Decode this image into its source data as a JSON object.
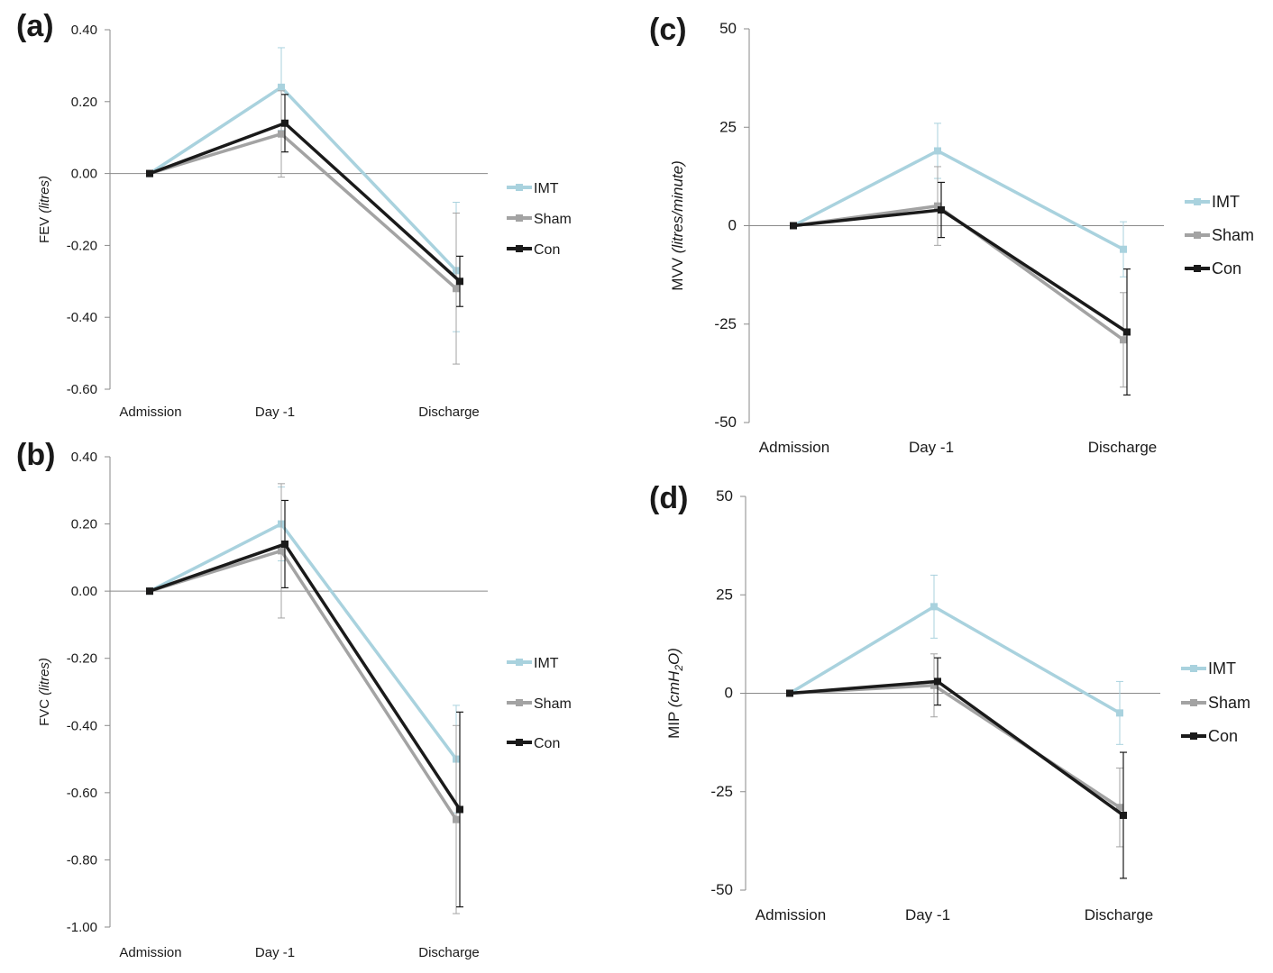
{
  "colors": {
    "IMT": "#a9d2de",
    "Sham": "#a3a3a3",
    "Con": "#1a1a1a",
    "axis": "#8a8a8a"
  },
  "chart_data": [
    {
      "panel": "(a)",
      "type": "line",
      "ylabel_main": "FEV",
      "ylabel_unit": "(litres)",
      "categories": [
        "Admission",
        "Day -1",
        "Discharge"
      ],
      "ylim": [
        -0.6,
        0.4
      ],
      "yticks": [
        0.4,
        0.2,
        0.0,
        -0.2,
        -0.4,
        -0.6
      ],
      "ytick_labels": [
        "0.40",
        "0.20",
        "0.00",
        "-0.20",
        "-0.40",
        "-0.60"
      ],
      "legend": "right",
      "grid": false,
      "series": [
        {
          "name": "IMT",
          "values": [
            0,
            0.24,
            -0.27
          ],
          "err_low": [
            0,
            0.12,
            -0.44
          ],
          "err_high": [
            0,
            0.35,
            -0.08
          ]
        },
        {
          "name": "Sham",
          "values": [
            0,
            0.11,
            -0.32
          ],
          "err_low": [
            0,
            -0.01,
            -0.53
          ],
          "err_high": [
            0,
            0.23,
            -0.11
          ]
        },
        {
          "name": "Con",
          "values": [
            0,
            0.14,
            -0.3
          ],
          "err_low": [
            0,
            0.06,
            -0.37
          ],
          "err_high": [
            0,
            0.22,
            -0.23
          ]
        }
      ]
    },
    {
      "panel": "(b)",
      "type": "line",
      "ylabel_main": "FVC",
      "ylabel_unit": "(litres)",
      "categories": [
        "Admission",
        "Day -1",
        "Discharge"
      ],
      "ylim": [
        -1.0,
        0.4
      ],
      "yticks": [
        0.4,
        0.2,
        0.0,
        -0.2,
        -0.4,
        -0.6,
        -0.8,
        -1.0
      ],
      "ytick_labels": [
        "0.40",
        "0.20",
        "0.00",
        "-0.20",
        "-0.40",
        "-0.60",
        "-0.80",
        "-1.00"
      ],
      "legend": "right",
      "grid": false,
      "series": [
        {
          "name": "IMT",
          "values": [
            0,
            0.2,
            -0.5
          ],
          "err_low": [
            0,
            0.09,
            -0.66
          ],
          "err_high": [
            0,
            0.31,
            -0.34
          ]
        },
        {
          "name": "Sham",
          "values": [
            0,
            0.12,
            -0.68
          ],
          "err_low": [
            0,
            -0.08,
            -0.96
          ],
          "err_high": [
            0,
            0.32,
            -0.4
          ]
        },
        {
          "name": "Con",
          "values": [
            0,
            0.14,
            -0.65
          ],
          "err_low": [
            0,
            0.01,
            -0.94
          ],
          "err_high": [
            0,
            0.27,
            -0.36
          ]
        }
      ]
    },
    {
      "panel": "(c)",
      "type": "line",
      "ylabel_main": "MVV",
      "ylabel_unit": "(litres/minute)",
      "categories": [
        "Admission",
        "Day -1",
        "Discharge"
      ],
      "ylim": [
        -50,
        50
      ],
      "yticks": [
        50,
        25,
        0,
        -25,
        -50
      ],
      "ytick_labels": [
        "50",
        "25",
        "0",
        "-25",
        "-50"
      ],
      "legend": "right",
      "grid": false,
      "series": [
        {
          "name": "IMT",
          "values": [
            0,
            19,
            -6
          ],
          "err_low": [
            0,
            12,
            -13
          ],
          "err_high": [
            0,
            26,
            1
          ]
        },
        {
          "name": "Sham",
          "values": [
            0,
            5,
            -29
          ],
          "err_low": [
            0,
            -5,
            -41
          ],
          "err_high": [
            0,
            15,
            -17
          ]
        },
        {
          "name": "Con",
          "values": [
            0,
            4,
            -27
          ],
          "err_low": [
            0,
            -3,
            -43
          ],
          "err_high": [
            0,
            11,
            -11
          ]
        }
      ]
    },
    {
      "panel": "(d)",
      "type": "line",
      "ylabel_main": "MIP",
      "ylabel_unit_prefix": "(cmH",
      "ylabel_unit_sub": "2",
      "ylabel_unit_suffix": "O)",
      "categories": [
        "Admission",
        "Day -1",
        "Discharge"
      ],
      "ylim": [
        -50,
        50
      ],
      "yticks": [
        50,
        25,
        0,
        -25,
        -50
      ],
      "ytick_labels": [
        "50",
        "25",
        "0",
        "-25",
        "-50"
      ],
      "legend": "right",
      "grid": false,
      "series": [
        {
          "name": "IMT",
          "values": [
            0,
            22,
            -5
          ],
          "err_low": [
            0,
            14,
            -13
          ],
          "err_high": [
            0,
            30,
            3
          ]
        },
        {
          "name": "Sham",
          "values": [
            0,
            2,
            -29
          ],
          "err_low": [
            0,
            -6,
            -39
          ],
          "err_high": [
            0,
            10,
            -19
          ]
        },
        {
          "name": "Con",
          "values": [
            0,
            3,
            -31
          ],
          "err_low": [
            0,
            -3,
            -47
          ],
          "err_high": [
            0,
            9,
            -15
          ]
        }
      ]
    }
  ]
}
